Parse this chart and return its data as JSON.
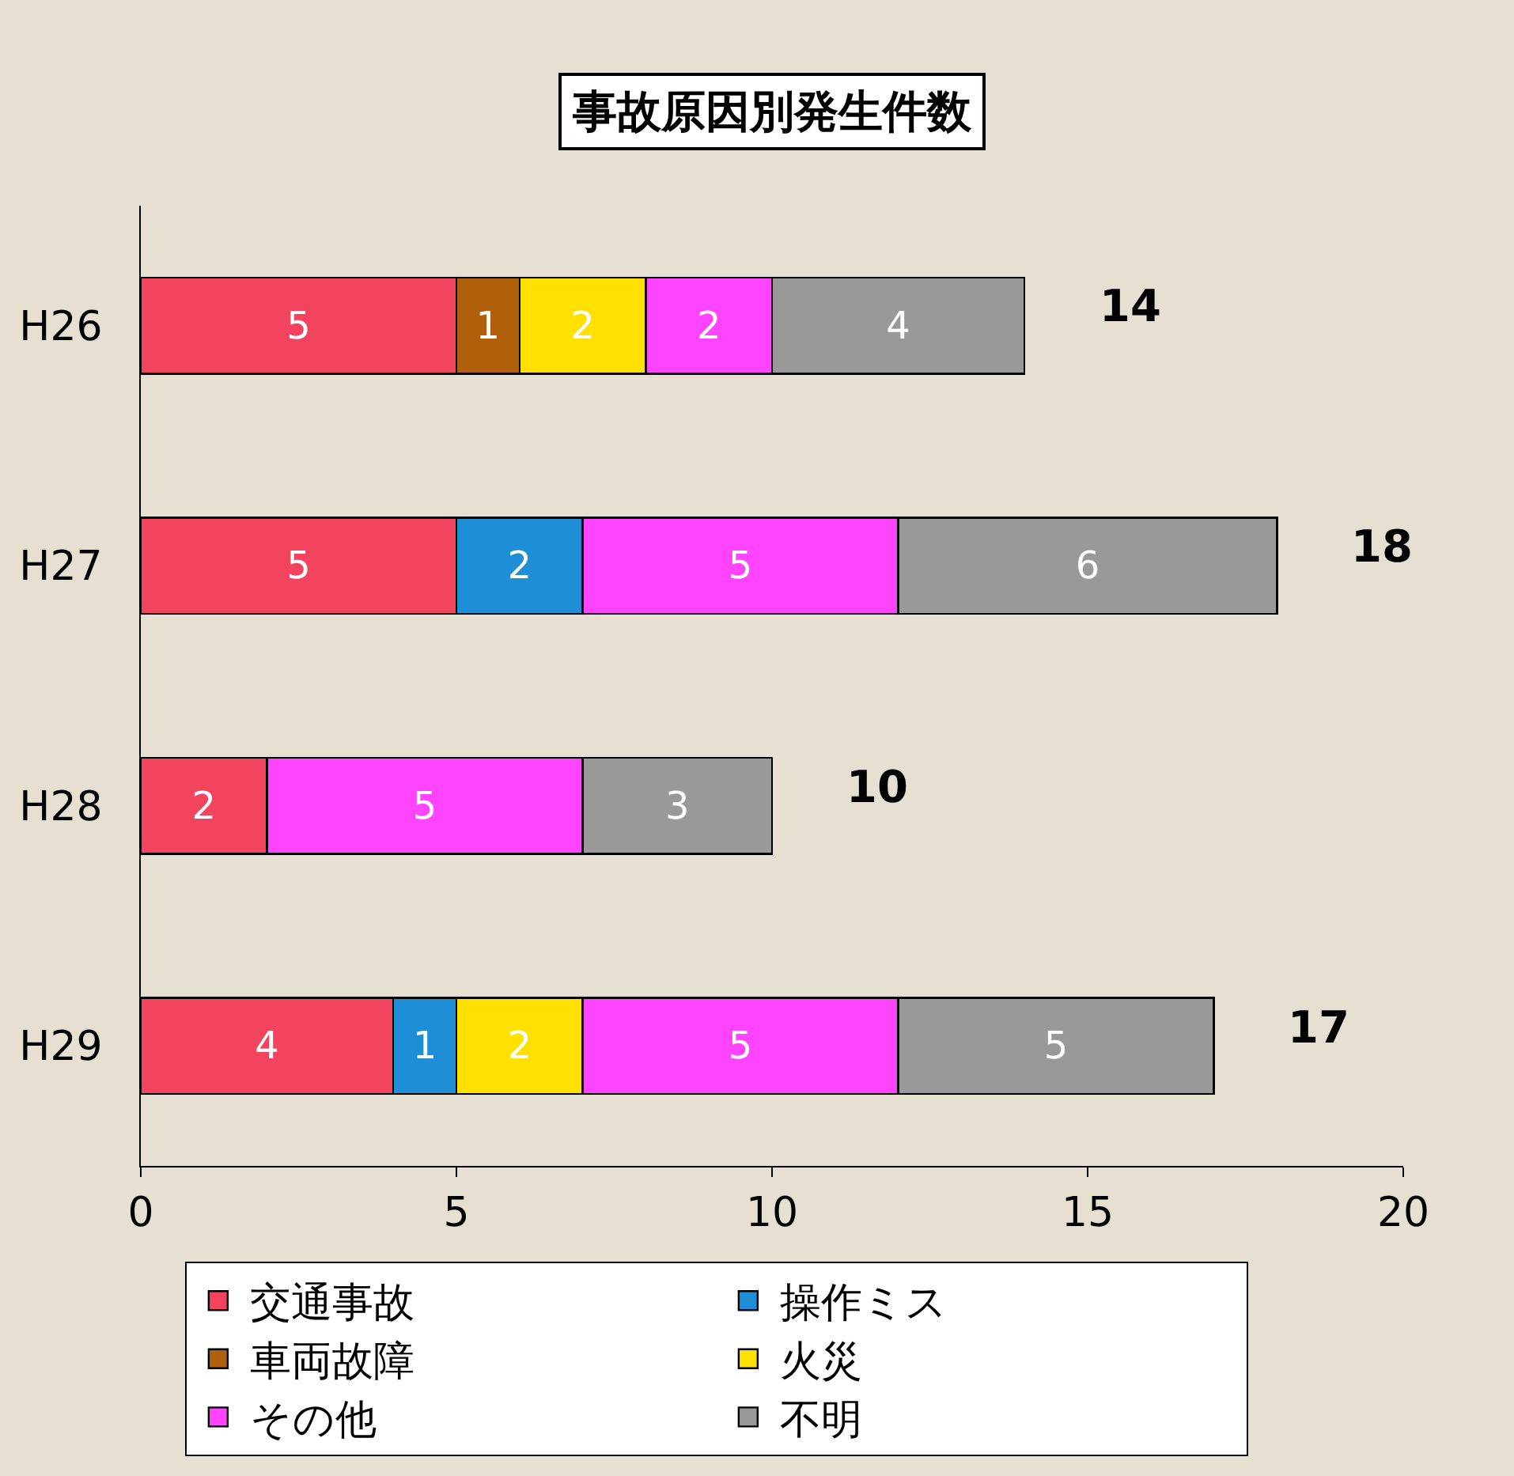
{
  "chart_data": {
    "type": "bar",
    "orientation": "horizontal",
    "stacked": true,
    "title": "事故原因別発生件数",
    "categories": [
      "H26",
      "H27",
      "H28",
      "H29"
    ],
    "series": [
      {
        "name": "交通事故",
        "color": "#f2445f",
        "values": [
          5,
          5,
          2,
          4
        ]
      },
      {
        "name": "操作ミス",
        "color": "#1e8fd6",
        "values": [
          null,
          2,
          null,
          1
        ]
      },
      {
        "name": "車両故障",
        "color": "#b0600a",
        "values": [
          1,
          null,
          null,
          null
        ]
      },
      {
        "name": "火災",
        "color": "#ffe000",
        "values": [
          2,
          null,
          null,
          2
        ]
      },
      {
        "name": "その他",
        "color": "#ff44ff",
        "values": [
          2,
          5,
          5,
          5
        ]
      },
      {
        "name": "不明",
        "color": "#999999",
        "values": [
          4,
          6,
          3,
          5
        ]
      }
    ],
    "xlim": [
      0,
      20
    ],
    "xticks": [
      0,
      5,
      10,
      15,
      20
    ],
    "grid": false,
    "legend": "bottom",
    "data_labels": true,
    "totals": [
      "14",
      "18",
      "10",
      "17"
    ]
  }
}
